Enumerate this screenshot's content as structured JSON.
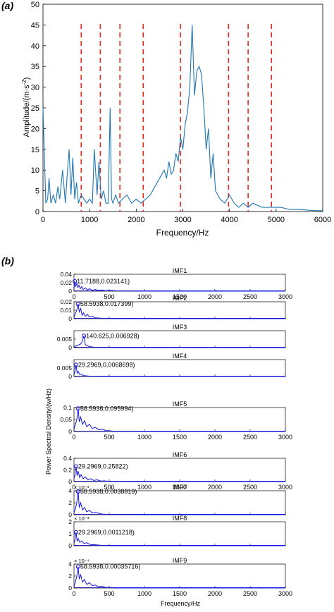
{
  "chart_data": [
    {
      "type": "line",
      "panel_label": "(a)",
      "xlabel": "Frequency/Hz",
      "ylabel_parts": {
        "main": "Amplitude/(m·s",
        "sup": "-2",
        "end": ")"
      },
      "xlim": [
        0,
        6000
      ],
      "ylim": [
        0,
        50
      ],
      "xticks": [
        0,
        1000,
        2000,
        3000,
        4000,
        5000,
        6000
      ],
      "yticks": [
        0,
        5,
        10,
        15,
        20,
        25,
        30,
        35,
        40,
        45,
        50
      ],
      "series_color": "#1f77b4",
      "boundary_color": "#e8281e",
      "dashed_boundaries_hz": [
        820,
        1230,
        1650,
        2150,
        2950,
        3980,
        4400,
        4900
      ],
      "series": [
        {
          "x": [
            0,
            60,
            100,
            130,
            170,
            220,
            270,
            320,
            360,
            420,
            480,
            520,
            560,
            600,
            640,
            680,
            720,
            760,
            820,
            880,
            940,
            1000,
            1060,
            1100,
            1160,
            1200,
            1250,
            1300,
            1350,
            1400,
            1440,
            1470,
            1500,
            1560,
            1620,
            1700,
            1800,
            1900,
            2000,
            2100,
            2200,
            2300,
            2400,
            2500,
            2550,
            2600,
            2650,
            2700,
            2750,
            2800,
            2850,
            2900,
            2950,
            3000,
            3050,
            3100,
            3150,
            3200,
            3250,
            3300,
            3350,
            3400,
            3450,
            3500,
            3550,
            3600,
            3650,
            3700,
            3800,
            3900,
            4000,
            4100,
            4200,
            4300,
            4400,
            4500,
            4700,
            4900,
            5100,
            5300,
            5500,
            5700,
            5900,
            6000
          ],
          "y": [
            25,
            2,
            3,
            8,
            2,
            4,
            2,
            6,
            3,
            10,
            2,
            9,
            15,
            4,
            13,
            3,
            7,
            2,
            4,
            3,
            2,
            3,
            2,
            15,
            4,
            12,
            3,
            5,
            2,
            2,
            25,
            3,
            2,
            4,
            2,
            3,
            4,
            2,
            3,
            2,
            3,
            4,
            6,
            8,
            9,
            10,
            8,
            12,
            9,
            10,
            14,
            12,
            18,
            15,
            21,
            24,
            30,
            45,
            28,
            34,
            35,
            33,
            25,
            15,
            20,
            8,
            14,
            5,
            3,
            2,
            4,
            2,
            1,
            2,
            1,
            2,
            1,
            1,
            1,
            0.5,
            0.5,
            0.3,
            0.2,
            0.2
          ]
        }
      ]
    },
    {
      "type": "line",
      "panel_label": "(b)",
      "title": "IMF1",
      "xlim": [
        0,
        3000
      ],
      "ylim": [
        0,
        0.04
      ],
      "ytick_labels": [
        "0",
        "0.02",
        "0.04"
      ],
      "yticks": [
        0,
        0.02,
        0.04
      ],
      "show_xtick_labels": true,
      "peak": {
        "x": 11.7188,
        "y": 0.023141,
        "label": "11.7188,0.023141)"
      },
      "series": [
        {
          "x": [
            0,
            12,
            25,
            40,
            55,
            70,
            90,
            110,
            130,
            160,
            190,
            220,
            260,
            300,
            350,
            400,
            450,
            500,
            600,
            700,
            800,
            1000,
            1500,
            2000,
            2500,
            3000
          ],
          "y": [
            0.005,
            0.023,
            0.012,
            0.018,
            0.009,
            0.014,
            0.006,
            0.011,
            0.004,
            0.008,
            0.003,
            0.006,
            0.002,
            0.004,
            0.002,
            0.003,
            0.001,
            0.002,
            0.001,
            0.0005,
            0.0003,
            0.0001,
            0,
            0,
            0,
            0
          ]
        }
      ]
    },
    {
      "type": "line",
      "title": "IMF2",
      "xlim": [
        0,
        3000
      ],
      "ylim": [
        0,
        0.02
      ],
      "ytick_labels": [
        "0",
        "0.01",
        "0.02"
      ],
      "yticks": [
        0,
        0.01,
        0.02
      ],
      "show_xtick_labels": false,
      "peak": {
        "x": 58.5938,
        "y": 0.017399,
        "label": "58.5938,0.017399)"
      },
      "series": [
        {
          "x": [
            0,
            20,
            40,
            58.6,
            75,
            95,
            115,
            135,
            160,
            190,
            220,
            260,
            300,
            400,
            600,
            1000,
            2000,
            3000
          ],
          "y": [
            0.002,
            0.006,
            0.01,
            0.0174,
            0.008,
            0.012,
            0.004,
            0.007,
            0.003,
            0.005,
            0.002,
            0.003,
            0.001,
            0.0005,
            0.0001,
            0,
            0,
            0
          ]
        }
      ]
    },
    {
      "type": "line",
      "title": "IMF3",
      "xlim": [
        0,
        3000
      ],
      "ylim": [
        0,
        0.01
      ],
      "ytick_labels": [
        "0",
        "0.005"
      ],
      "yticks": [
        0,
        0.005
      ],
      "show_xtick_labels": false,
      "peak": {
        "x": 140.625,
        "y": 0.006928,
        "label": "140.625,0.006928)"
      },
      "series": [
        {
          "x": [
            0,
            30,
            60,
            90,
            110,
            140.6,
            160,
            180,
            210,
            250,
            300,
            400,
            600,
            1000,
            2000,
            3000
          ],
          "y": [
            0.0003,
            0.001,
            0.0015,
            0.002,
            0.003,
            0.0069,
            0.002,
            0.0012,
            0.0008,
            0.0004,
            0.0002,
            0.0001,
            0,
            0,
            0,
            0
          ]
        }
      ]
    },
    {
      "type": "line",
      "title": "IMF4",
      "xlim": [
        0,
        3000
      ],
      "ylim": [
        0,
        0.01
      ],
      "ytick_labels": [
        "0",
        "0.005"
      ],
      "yticks": [
        0,
        0.005
      ],
      "show_xtick_labels": false,
      "peak": {
        "x": 29.2969,
        "y": 0.0068698,
        "label": "29.2969,0.0068698)"
      },
      "series": [
        {
          "x": [
            0,
            15,
            29.3,
            45,
            60,
            80,
            100,
            130,
            170,
            220,
            300,
            500,
            1000,
            2000,
            3000
          ],
          "y": [
            0.001,
            0.003,
            0.0069,
            0.002,
            0.003,
            0.0012,
            0.0015,
            0.0006,
            0.0004,
            0.0002,
            0.0001,
            0,
            0,
            0,
            0
          ]
        }
      ]
    },
    {
      "type": "line",
      "title": "IMF5",
      "xlim": [
        0,
        3000
      ],
      "ylim": [
        0,
        0.1
      ],
      "ytick_labels": [
        "0",
        "0.05",
        "0.1"
      ],
      "yticks": [
        0,
        0.05,
        0.1
      ],
      "show_xtick_labels": true,
      "peak": {
        "x": 58.5938,
        "y": 0.095994,
        "label": "58.5938,0.095994)"
      },
      "series": [
        {
          "x": [
            0,
            20,
            40,
            58.6,
            75,
            95,
            120,
            150,
            180,
            220,
            260,
            300,
            350,
            400,
            450,
            500,
            600,
            800,
            1000,
            2000,
            3000
          ],
          "y": [
            0.01,
            0.03,
            0.05,
            0.096,
            0.04,
            0.06,
            0.03,
            0.045,
            0.02,
            0.03,
            0.012,
            0.018,
            0.008,
            0.01,
            0.004,
            0.003,
            0.001,
            0.0005,
            0,
            0,
            0
          ]
        }
      ]
    },
    {
      "type": "line",
      "title": "IMF6",
      "xlim": [
        0,
        3000
      ],
      "ylim": [
        0,
        0.4
      ],
      "ytick_labels": [
        "0",
        "0.2",
        "0.4"
      ],
      "yticks": [
        0,
        0.2,
        0.4
      ],
      "show_xtick_labels": true,
      "peak": {
        "x": 29.2969,
        "y": 0.25822,
        "label": "29.2969,0.25822)"
      },
      "series": [
        {
          "x": [
            0,
            15,
            29.3,
            45,
            60,
            80,
            100,
            130,
            160,
            200,
            240,
            280,
            330,
            380,
            430,
            500,
            600,
            1000,
            2000,
            3000
          ],
          "y": [
            0.05,
            0.12,
            0.258,
            0.1,
            0.18,
            0.07,
            0.12,
            0.05,
            0.08,
            0.03,
            0.05,
            0.02,
            0.03,
            0.01,
            0.012,
            0.005,
            0.002,
            0,
            0,
            0
          ]
        }
      ]
    },
    {
      "type": "line",
      "title": "IMF7",
      "xlim": [
        0,
        3000
      ],
      "ylim": [
        0,
        0.004
      ],
      "ytick_labels": [
        "0",
        "2",
        "4"
      ],
      "yticks": [
        0,
        0.002,
        0.004
      ],
      "multiplier": "× 10⁻³",
      "show_xtick_labels": false,
      "peak": {
        "x": 58.5938,
        "y": 0.0038819,
        "label": "58.5938,0.0038819)"
      },
      "series": [
        {
          "x": [
            0,
            20,
            40,
            58.6,
            75,
            95,
            120,
            150,
            180,
            220,
            260,
            300,
            400,
            500,
            1000,
            2000,
            3000
          ],
          "y": [
            0.0003,
            0.001,
            0.002,
            0.00388,
            0.0012,
            0.002,
            0.0008,
            0.0012,
            0.0005,
            0.0007,
            0.0003,
            0.0004,
            0.0001,
            5e-05,
            0,
            0,
            0
          ]
        }
      ]
    },
    {
      "type": "line",
      "title": "IMF8",
      "xlim": [
        0,
        3000
      ],
      "ylim": [
        0,
        0.002
      ],
      "ytick_labels": [
        "0",
        "1",
        "2"
      ],
      "yticks": [
        0,
        0.001,
        0.002
      ],
      "multiplier": "× 10⁻³",
      "show_xtick_labels": false,
      "peak": {
        "x": 29.2969,
        "y": 0.0011218,
        "label": "29.2969,0.0011218)"
      },
      "series": [
        {
          "x": [
            0,
            15,
            29.3,
            45,
            60,
            80,
            110,
            140,
            180,
            230,
            300,
            400,
            600,
            1000,
            2000,
            3000
          ],
          "y": [
            0.0002,
            0.0005,
            0.00112,
            0.0004,
            0.0006,
            0.0003,
            0.0004,
            0.0002,
            0.00025,
            0.0001,
            8e-05,
            3e-05,
            0,
            0,
            0,
            0
          ]
        }
      ]
    },
    {
      "type": "line",
      "title": "IMF9",
      "xlim": [
        0,
        3000
      ],
      "ylim": [
        0,
        0.0004
      ],
      "ytick_labels": [
        "0",
        "2",
        "4"
      ],
      "yticks": [
        0,
        0.0002,
        0.0004
      ],
      "multiplier": "× 10⁻⁴",
      "show_xtick_labels": true,
      "xlabel": "Frequency/Hz",
      "peak": {
        "x": 58.5938,
        "y": 0.00035716,
        "label": "58.5938,0.00035716)"
      },
      "series": [
        {
          "x": [
            0,
            20,
            40,
            58.6,
            75,
            95,
            120,
            150,
            180,
            220,
            260,
            300,
            350,
            400,
            450,
            500,
            600,
            1000,
            2000,
            3000
          ],
          "y": [
            3e-05,
            0.0001,
            0.0002,
            0.000357,
            0.00015,
            0.00022,
            0.0001,
            0.00014,
            6e-05,
            9e-05,
            4e-05,
            5e-05,
            2e-05,
            3e-05,
            1e-05,
            1e-05,
            0,
            0,
            0,
            0
          ]
        }
      ]
    }
  ],
  "panel_b_ylabel": "Power Spectral Density/(w/Hz)",
  "panel_b_xticks": [
    0,
    500,
    1000,
    1500,
    2000,
    2500,
    3000
  ],
  "panel_b_series_color": "#1515e0"
}
